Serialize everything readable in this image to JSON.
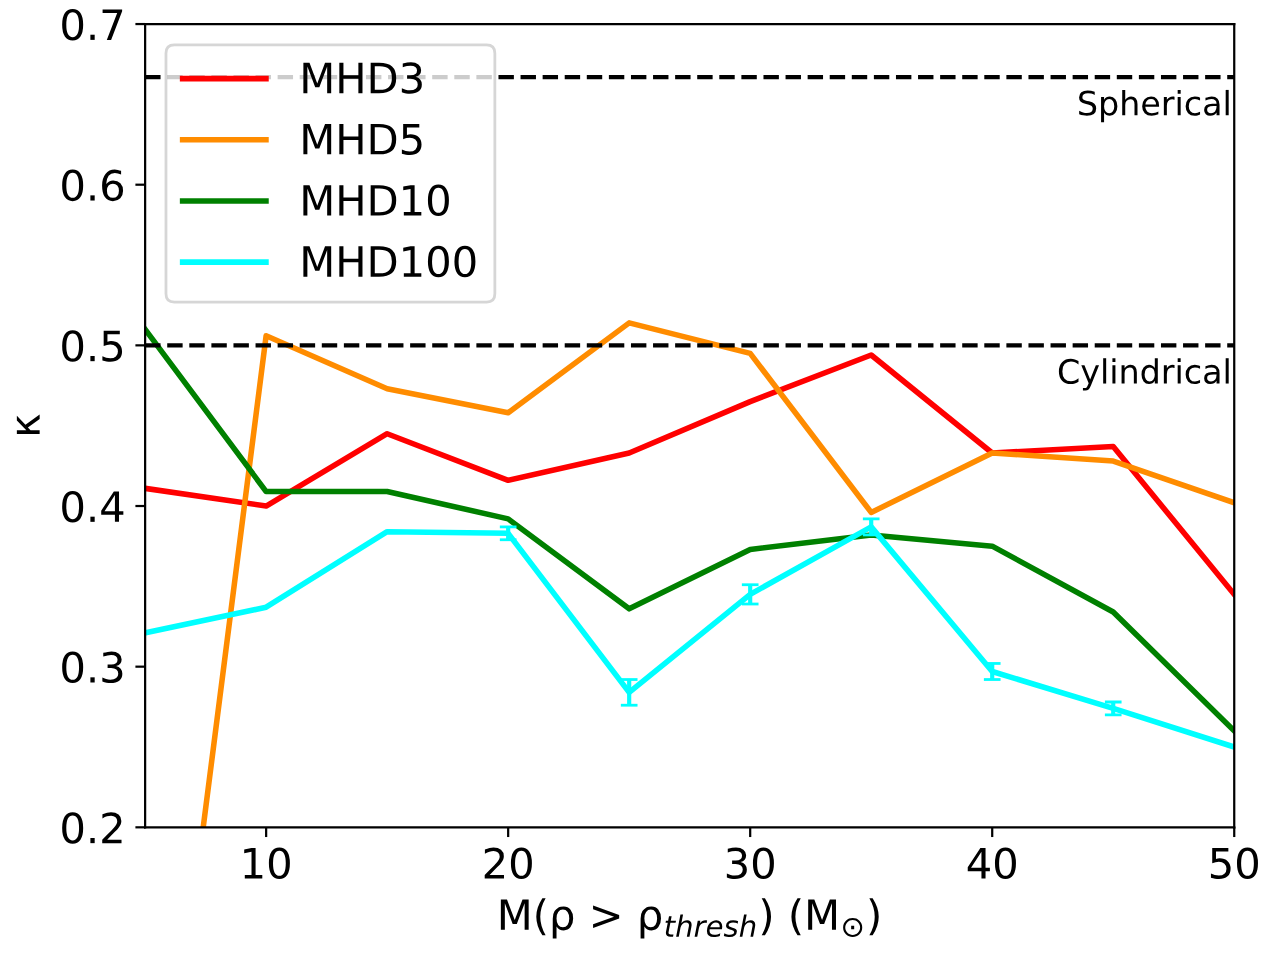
{
  "chart_data": {
    "type": "line",
    "xlabel": "M(ρ > ρ$_{thresh}$) (M$_{⊙}$)",
    "ylabel": "κ",
    "x": [
      5,
      10,
      15,
      20,
      25,
      30,
      35,
      40,
      45,
      50
    ],
    "xlim": [
      5,
      50
    ],
    "xticks": [
      10,
      20,
      30,
      40,
      50
    ],
    "ylim": [
      0.2,
      0.7
    ],
    "yticks": [
      0.2,
      0.3,
      0.4,
      0.5,
      0.6,
      0.7
    ],
    "series": [
      {
        "name": "MHD3",
        "color": "#ff0000",
        "values": [
          0.411,
          0.4,
          0.445,
          0.416,
          0.433,
          0.465,
          0.494,
          0.433,
          0.437,
          0.345
        ]
      },
      {
        "name": "MHD5",
        "color": "#ff8c00",
        "x": [
          7.4,
          10,
          15,
          20,
          25,
          30,
          35,
          40,
          45,
          50
        ],
        "values": [
          0.2,
          0.506,
          0.473,
          0.458,
          0.514,
          0.495,
          0.396,
          0.433,
          0.428,
          0.402
        ]
      },
      {
        "name": "MHD10",
        "color": "#008000",
        "values": [
          0.51,
          0.409,
          0.409,
          0.392,
          0.336,
          0.373,
          0.382,
          0.375,
          0.334,
          0.26
        ]
      },
      {
        "name": "MHD100",
        "color": "#00ffff",
        "values": [
          0.321,
          0.337,
          0.384,
          0.383,
          0.284,
          0.345,
          0.387,
          0.297,
          0.274,
          0.25
        ],
        "errors": [
          null,
          null,
          null,
          0.004,
          0.008,
          0.006,
          0.005,
          0.005,
          0.004,
          null
        ]
      }
    ],
    "ref_lines": [
      {
        "axis": "y",
        "value": 0.667,
        "label": "Spherical",
        "color": "#000000",
        "line_style": "dashed"
      },
      {
        "axis": "y",
        "value": 0.5,
        "label": "Cylindrical",
        "color": "#000000",
        "line_style": "dashed"
      }
    ],
    "legend": "top left",
    "grid": false
  }
}
